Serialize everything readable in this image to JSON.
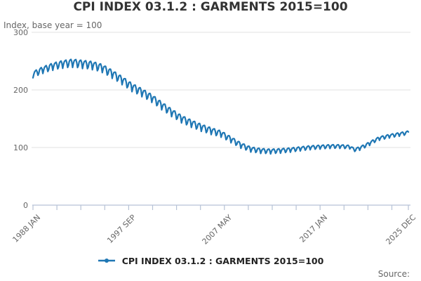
{
  "title": "CPI INDEX 03.1.2 : GARMENTS 2015=100",
  "subtitle": "Index, base year = 100",
  "legend": {
    "label": "CPI INDEX 03.1.2 : GARMENTS 2015=100"
  },
  "source": {
    "label": "Source:"
  },
  "colors": {
    "line": "#1f77b4",
    "grid": "#e0e0e0",
    "axis": "#b6c2d6",
    "title_text": "#333333",
    "muted_text": "#666666",
    "legend_text": "#222222",
    "background": "#ffffff"
  },
  "chart_data": {
    "type": "line",
    "title": "CPI INDEX 03.1.2 : GARMENTS 2015=100",
    "subtitle": "Index, base year = 100",
    "x_start": "1988-01",
    "x_end": "2025-12",
    "points_monthly": 456,
    "ylim": [
      0,
      300
    ],
    "y_ticks": [
      0,
      100,
      200,
      300
    ],
    "grid": "horizontal-only",
    "legend_position": "bottom-center",
    "x_tick_month_indices": [
      0,
      29,
      58,
      87,
      116,
      145,
      174,
      203,
      232,
      261,
      290,
      319,
      348,
      377,
      406,
      435,
      455
    ],
    "x_tick_labels": [
      {
        "m": 0,
        "label": "1988 JAN"
      },
      {
        "m": 116,
        "label": "1997 SEP"
      },
      {
        "m": 232,
        "label": "2007 MAY"
      },
      {
        "m": 348,
        "label": "2017 JAN"
      },
      {
        "m": 455,
        "label": "2025 DEC"
      }
    ],
    "series": [
      {
        "name": "CPI INDEX 03.1.2 : GARMENTS 2015=100",
        "color": "#1f77b4",
        "value_model": "value(m) = lerp(trend_anchors, m) + seasonal_offsets[m % 12] * lerp(amplitude_anchors, m); m = months since 1988-01",
        "trend_anchors": [
          [
            0,
            227
          ],
          [
            12,
            235
          ],
          [
            24,
            241
          ],
          [
            36,
            245
          ],
          [
            48,
            247
          ],
          [
            60,
            245
          ],
          [
            72,
            243
          ],
          [
            84,
            238
          ],
          [
            96,
            228
          ],
          [
            108,
            217
          ],
          [
            120,
            205
          ],
          [
            132,
            196
          ],
          [
            144,
            186
          ],
          [
            156,
            173
          ],
          [
            168,
            161
          ],
          [
            180,
            150
          ],
          [
            192,
            142
          ],
          [
            204,
            135
          ],
          [
            216,
            129
          ],
          [
            228,
            124
          ],
          [
            240,
            114
          ],
          [
            252,
            104
          ],
          [
            264,
            97
          ],
          [
            276,
            94.5
          ],
          [
            288,
            93.5
          ],
          [
            300,
            94.5
          ],
          [
            312,
            96
          ],
          [
            324,
            98
          ],
          [
            336,
            100
          ],
          [
            348,
            101
          ],
          [
            360,
            102
          ],
          [
            372,
            102
          ],
          [
            384,
            101
          ],
          [
            389,
            96
          ],
          [
            395,
            98
          ],
          [
            401,
            102
          ],
          [
            408,
            107
          ],
          [
            414,
            112
          ],
          [
            420,
            116
          ],
          [
            426,
            118
          ],
          [
            432,
            120
          ],
          [
            438,
            121.5
          ],
          [
            444,
            123
          ],
          [
            450,
            124.5
          ],
          [
            455,
            126
          ]
        ],
        "seasonal_offsets": [
          -1,
          -0.1,
          0.5,
          0.7,
          0.8,
          0.2,
          -0.9,
          -0.5,
          0.4,
          0.7,
          0.8,
          0.3
        ],
        "amplitude_anchors": [
          [
            0,
            6
          ],
          [
            48,
            8
          ],
          [
            120,
            8
          ],
          [
            204,
            7
          ],
          [
            264,
            5
          ],
          [
            324,
            4
          ],
          [
            384,
            3.5
          ],
          [
            455,
            3.5
          ]
        ]
      }
    ]
  }
}
